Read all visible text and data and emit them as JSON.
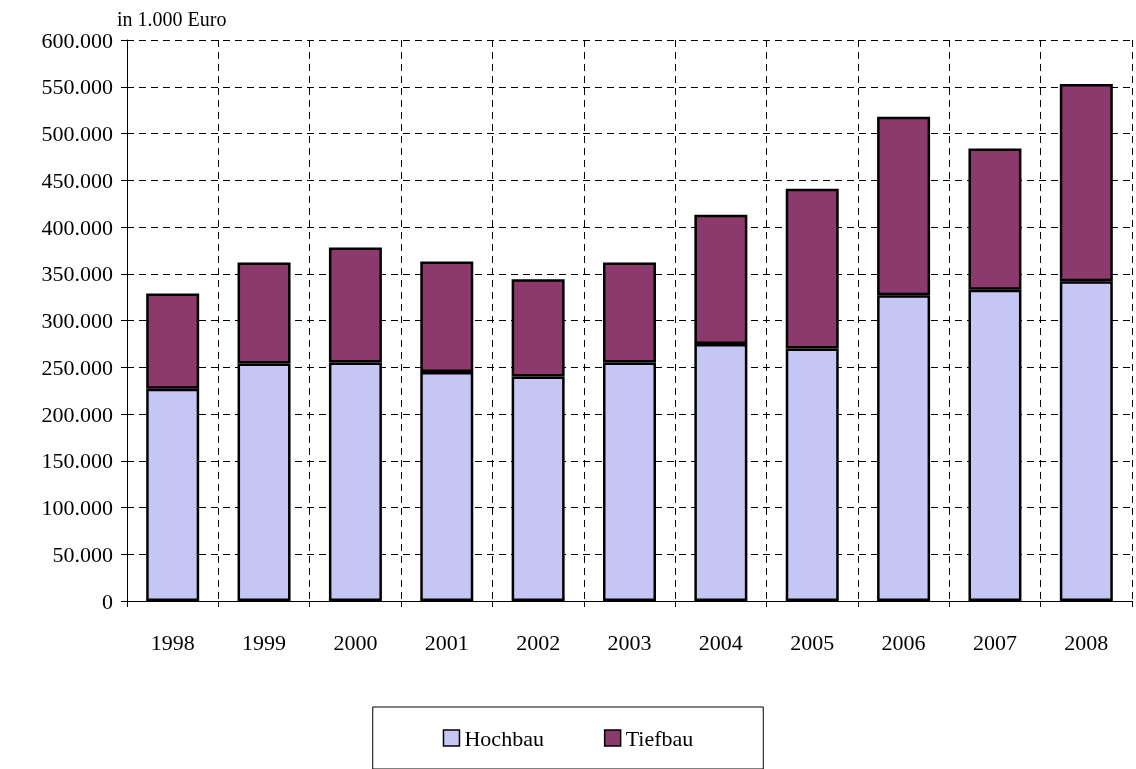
{
  "chart_data": {
    "type": "bar",
    "ylabel": "in 1.000 Euro",
    "categories": [
      "1998",
      "1999",
      "2000",
      "2001",
      "2002",
      "2003",
      "2004",
      "2005",
      "2006",
      "2007",
      "2008"
    ],
    "series": [
      {
        "name": "Hochbau",
        "color": "#c6c6f5",
        "values": [
          227000,
          254000,
          255000,
          245000,
          240000,
          255000,
          275000,
          270000,
          327000,
          333000,
          342000
        ]
      },
      {
        "name": "Tiefbau",
        "color": "#8b3a6b",
        "values": [
          102000,
          108000,
          123000,
          118000,
          104000,
          107000,
          138000,
          171000,
          191000,
          151000,
          211000
        ]
      }
    ],
    "stacked": true,
    "ylim": [
      0,
      600000
    ],
    "yticks": [
      0,
      {
        "value": 50000,
        "label": "50.000"
      },
      {
        "value": 100000,
        "label": "100.000"
      },
      {
        "value": 150000,
        "label": "150.000"
      },
      {
        "value": 200000,
        "label": "200.000"
      },
      {
        "value": 250000,
        "label": "250.000"
      },
      {
        "value": 300000,
        "label": "300.000"
      },
      {
        "value": 350000,
        "label": "350.000"
      },
      {
        "value": 400000,
        "label": "400.000"
      },
      {
        "value": 450000,
        "label": "450.000"
      },
      {
        "value": 500000,
        "label": "500.000"
      },
      {
        "value": 550000,
        "label": "550.000"
      },
      {
        "value": 600000,
        "label": "600.000"
      }
    ],
    "grid": true,
    "legend": "bottom"
  }
}
